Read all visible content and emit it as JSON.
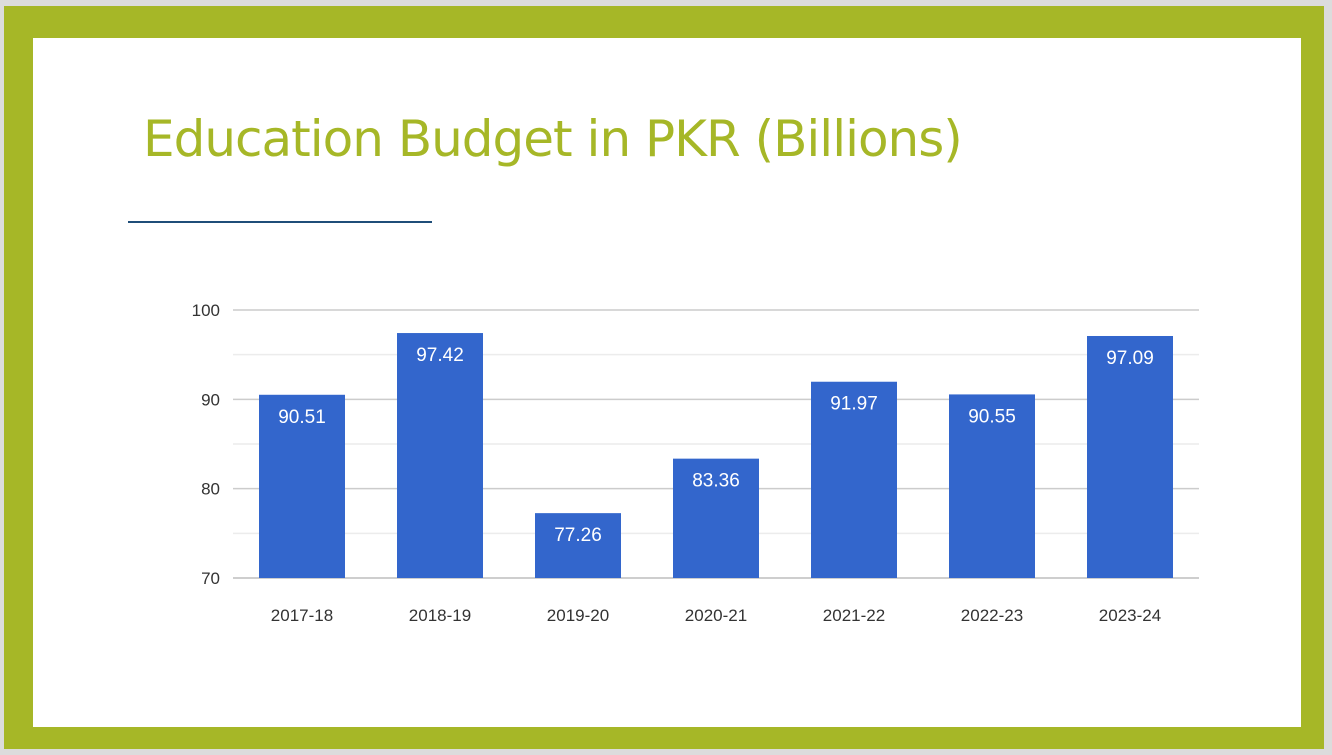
{
  "slide": {
    "title": "Education Budget in PKR (Billions)",
    "frame_color": "#a6b727",
    "title_color": "#a6b727",
    "rule_color": "#1f4e79"
  },
  "chart_data": {
    "type": "bar",
    "title": "",
    "xlabel": "",
    "ylabel": "",
    "categories": [
      "2017-18",
      "2018-19",
      "2019-20",
      "2020-21",
      "2021-22",
      "2022-23",
      "2023-24"
    ],
    "values": [
      90.51,
      97.42,
      77.26,
      83.36,
      91.97,
      90.55,
      97.09
    ],
    "value_labels": [
      "90.51",
      "97.42",
      "77.26",
      "83.36",
      "91.97",
      "90.55",
      "97.09"
    ],
    "ylim": [
      70,
      100
    ],
    "yticks": [
      70,
      80,
      90,
      100
    ],
    "grid": true,
    "bar_color": "#3366cc",
    "grid_color": "#cccccc",
    "legend": "none"
  }
}
